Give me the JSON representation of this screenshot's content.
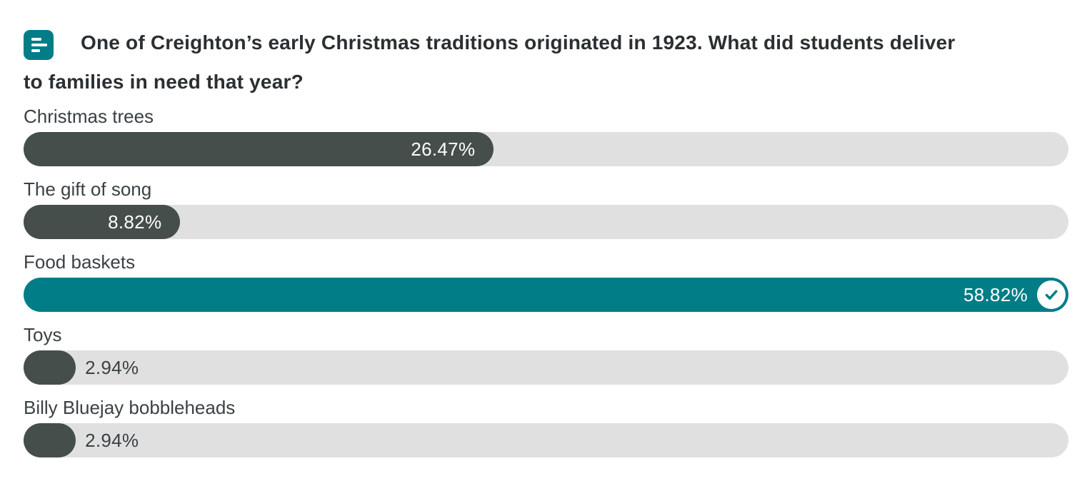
{
  "poll": {
    "question": "One of Creighton’s early Christmas traditions originated in 1923. What did students deliver to families in need that year?",
    "icon": "poll-bars-icon",
    "colors": {
      "accent_teal": "#007d87",
      "default_fill": "#454e4b",
      "track": "#e0e0e0",
      "title_text": "#2b2f32",
      "label_text": "#3a4145",
      "percent_text_inside": "#ffffff"
    },
    "options": [
      {
        "label": "Christmas trees",
        "percent": 26.47,
        "percent_label": "26.47%",
        "correct": false,
        "text_inside": true
      },
      {
        "label": "The gift of song",
        "percent": 8.82,
        "percent_label": "8.82%",
        "correct": false,
        "text_inside": true
      },
      {
        "label": "Food baskets",
        "percent": 58.82,
        "percent_label": "58.82%",
        "correct": true,
        "text_inside": true
      },
      {
        "label": "Toys",
        "percent": 2.94,
        "percent_label": "2.94%",
        "correct": false,
        "text_inside": false
      },
      {
        "label": "Billy Bluejay bobbleheads",
        "percent": 2.94,
        "percent_label": "2.94%",
        "correct": false,
        "text_inside": false
      }
    ]
  },
  "chart_data": {
    "type": "bar",
    "orientation": "horizontal",
    "title": "One of Creighton’s early Christmas traditions originated in 1923. What did students deliver to families in need that year?",
    "categories": [
      "Christmas trees",
      "The gift of song",
      "Food baskets",
      "Toys",
      "Billy Bluejay bobbleheads"
    ],
    "values": [
      26.47,
      8.82,
      58.82,
      2.94,
      2.94
    ],
    "unit": "%",
    "correct_answer": "Food baskets",
    "bar_scale_max": 58.82,
    "legend": "none",
    "grid": "off"
  }
}
